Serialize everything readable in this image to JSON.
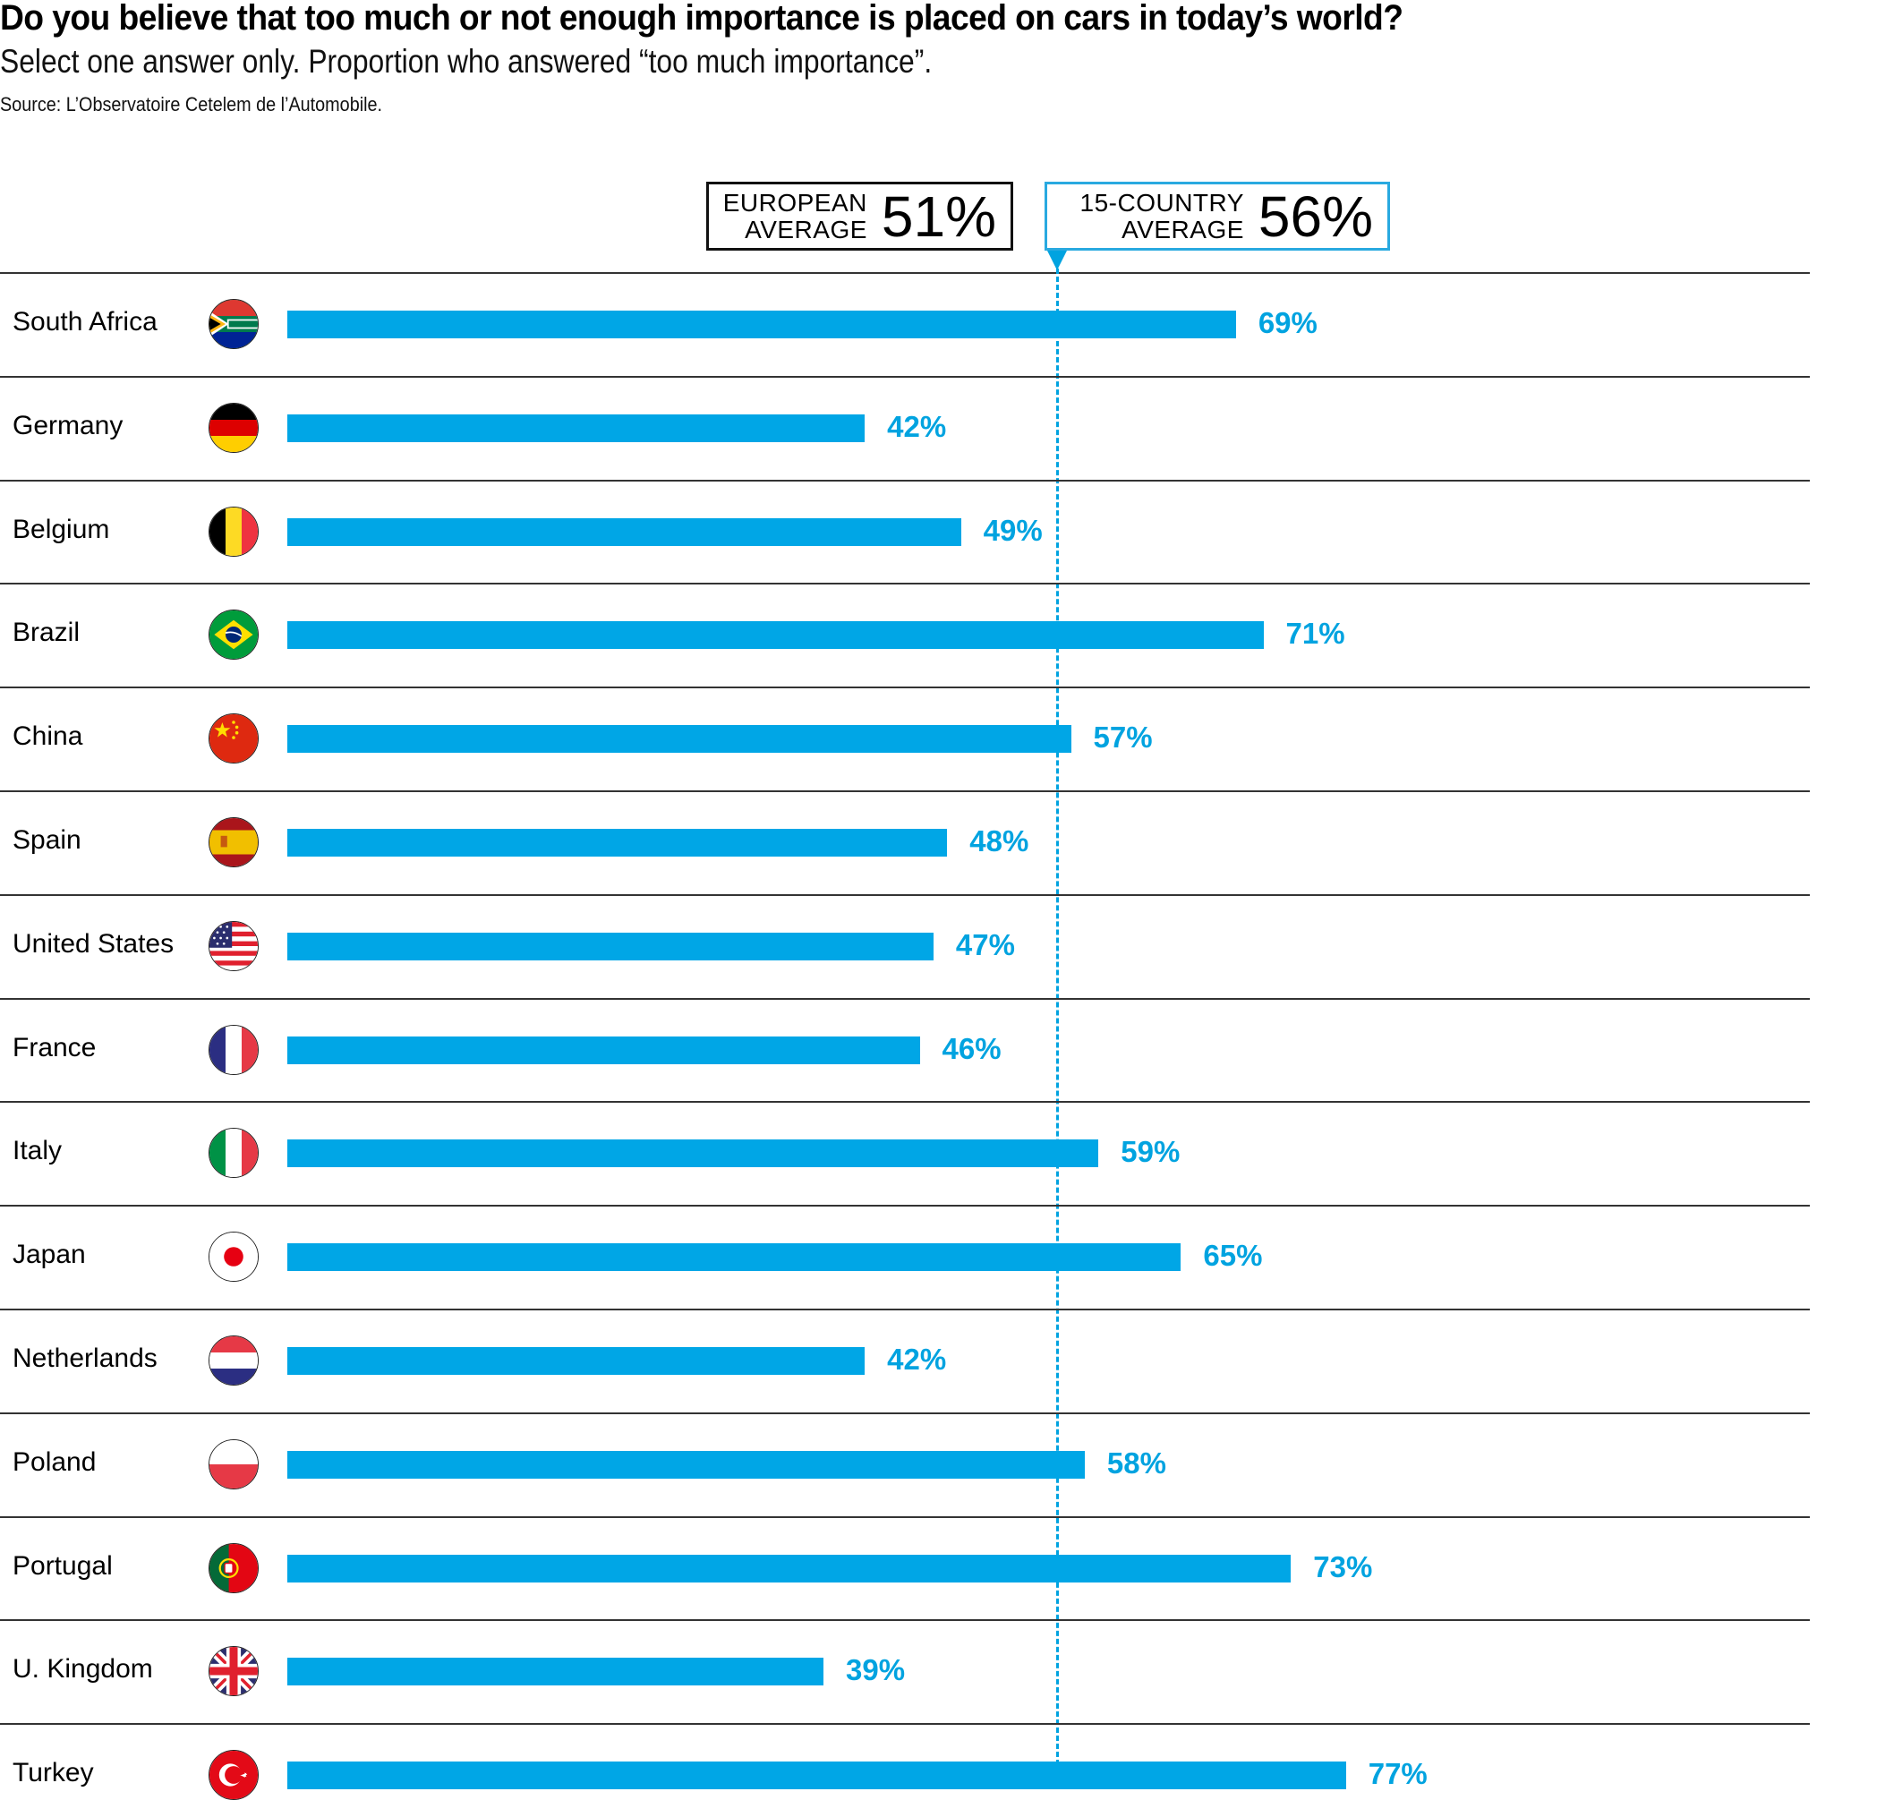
{
  "chart_data": {
    "type": "bar",
    "orientation": "horizontal",
    "title": "Do you believe that too much or not enough importance is placed on cars in today’s world?",
    "subtitle": "Select one answer only. Proportion who answered “too much importance”.",
    "source": "Source: L’Observatoire Cetelem de l’Automobile.",
    "xlabel": "",
    "ylabel": "",
    "unit": "%",
    "xlim": [
      0,
      100
    ],
    "grid": false,
    "categories": [
      "South Africa",
      "Germany",
      "Belgium",
      "Brazil",
      "China",
      "Spain",
      "United States",
      "France",
      "Italy",
      "Japan",
      "Netherlands",
      "Poland",
      "Portugal",
      "U. Kingdom",
      "Turkey"
    ],
    "values": [
      69,
      42,
      49,
      71,
      57,
      48,
      47,
      46,
      59,
      65,
      42,
      58,
      73,
      39,
      77
    ],
    "value_labels": [
      "69%",
      "42%",
      "49%",
      "71%",
      "57%",
      "48%",
      "47%",
      "46%",
      "59%",
      "65%",
      "42%",
      "58%",
      "73%",
      "39%",
      "77%"
    ],
    "flags": [
      "south-africa-flag",
      "germany-flag",
      "belgium-flag",
      "brazil-flag",
      "china-flag",
      "spain-flag",
      "usa-flag",
      "france-flag",
      "italy-flag",
      "japan-flag",
      "netherlands-flag",
      "poland-flag",
      "portugal-flag",
      "uk-flag",
      "turkey-flag"
    ],
    "reference_lines": [
      {
        "name": "15-country average",
        "value": 56,
        "style": "dashed"
      }
    ],
    "averages": {
      "european": {
        "label": "EUROPEAN\nAVERAGE",
        "value_label": "51%",
        "value": 51
      },
      "fifteen_country": {
        "label": "15-COUNTRY\nAVERAGE",
        "value_label": "56%",
        "value": 56
      }
    },
    "colors": {
      "bar": "#00a6e6",
      "value_label": "#00a3e0",
      "avg_box_eu_border": "#111111",
      "avg_box_all_border": "#29a9e0"
    }
  }
}
